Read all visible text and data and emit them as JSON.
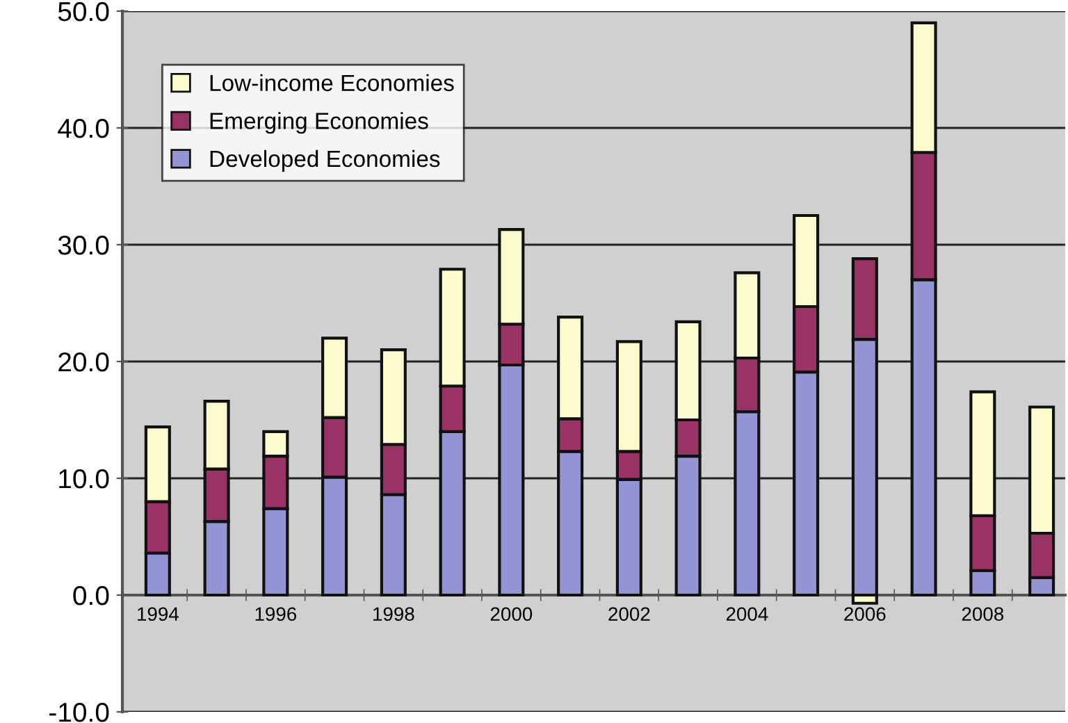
{
  "chart_data": {
    "type": "bar",
    "stacked": true,
    "categories": [
      "1994",
      null,
      "1996",
      null,
      "1998",
      null,
      "2000",
      null,
      "2002",
      null,
      "2004",
      null,
      "2006",
      null,
      "2008",
      null
    ],
    "series": [
      {
        "name": "Developed Economies",
        "color": "#9494d4",
        "values": [
          3.6,
          6.3,
          7.4,
          10.1,
          8.6,
          14.0,
          19.7,
          12.3,
          9.9,
          11.9,
          15.7,
          19.1,
          21.9,
          27.0,
          2.1,
          1.5
        ]
      },
      {
        "name": "Emerging Economies",
        "color": "#993366",
        "values": [
          4.4,
          4.5,
          4.5,
          5.1,
          4.3,
          3.9,
          3.5,
          2.8,
          2.4,
          3.1,
          4.6,
          5.6,
          6.9,
          10.9,
          4.7,
          3.8
        ]
      },
      {
        "name": "Low-income Economies",
        "color": "#fbfbcd",
        "values": [
          6.4,
          5.8,
          2.1,
          6.8,
          8.1,
          10.0,
          8.1,
          8.7,
          9.4,
          8.4,
          7.3,
          7.8,
          -0.7,
          11.1,
          10.6,
          10.8
        ]
      }
    ],
    "ylim": [
      -10,
      50
    ],
    "yticks": [
      {
        "value": -10,
        "label": "-10.0"
      },
      {
        "value": 0,
        "label": "0.0"
      },
      {
        "value": 10,
        "label": "10.0"
      },
      {
        "value": 20,
        "label": "20.0"
      },
      {
        "value": 30,
        "label": "30.0"
      },
      {
        "value": 40,
        "label": "40.0"
      },
      {
        "value": 50,
        "label": "50.0"
      }
    ],
    "grid": "y",
    "legend": "top left"
  }
}
